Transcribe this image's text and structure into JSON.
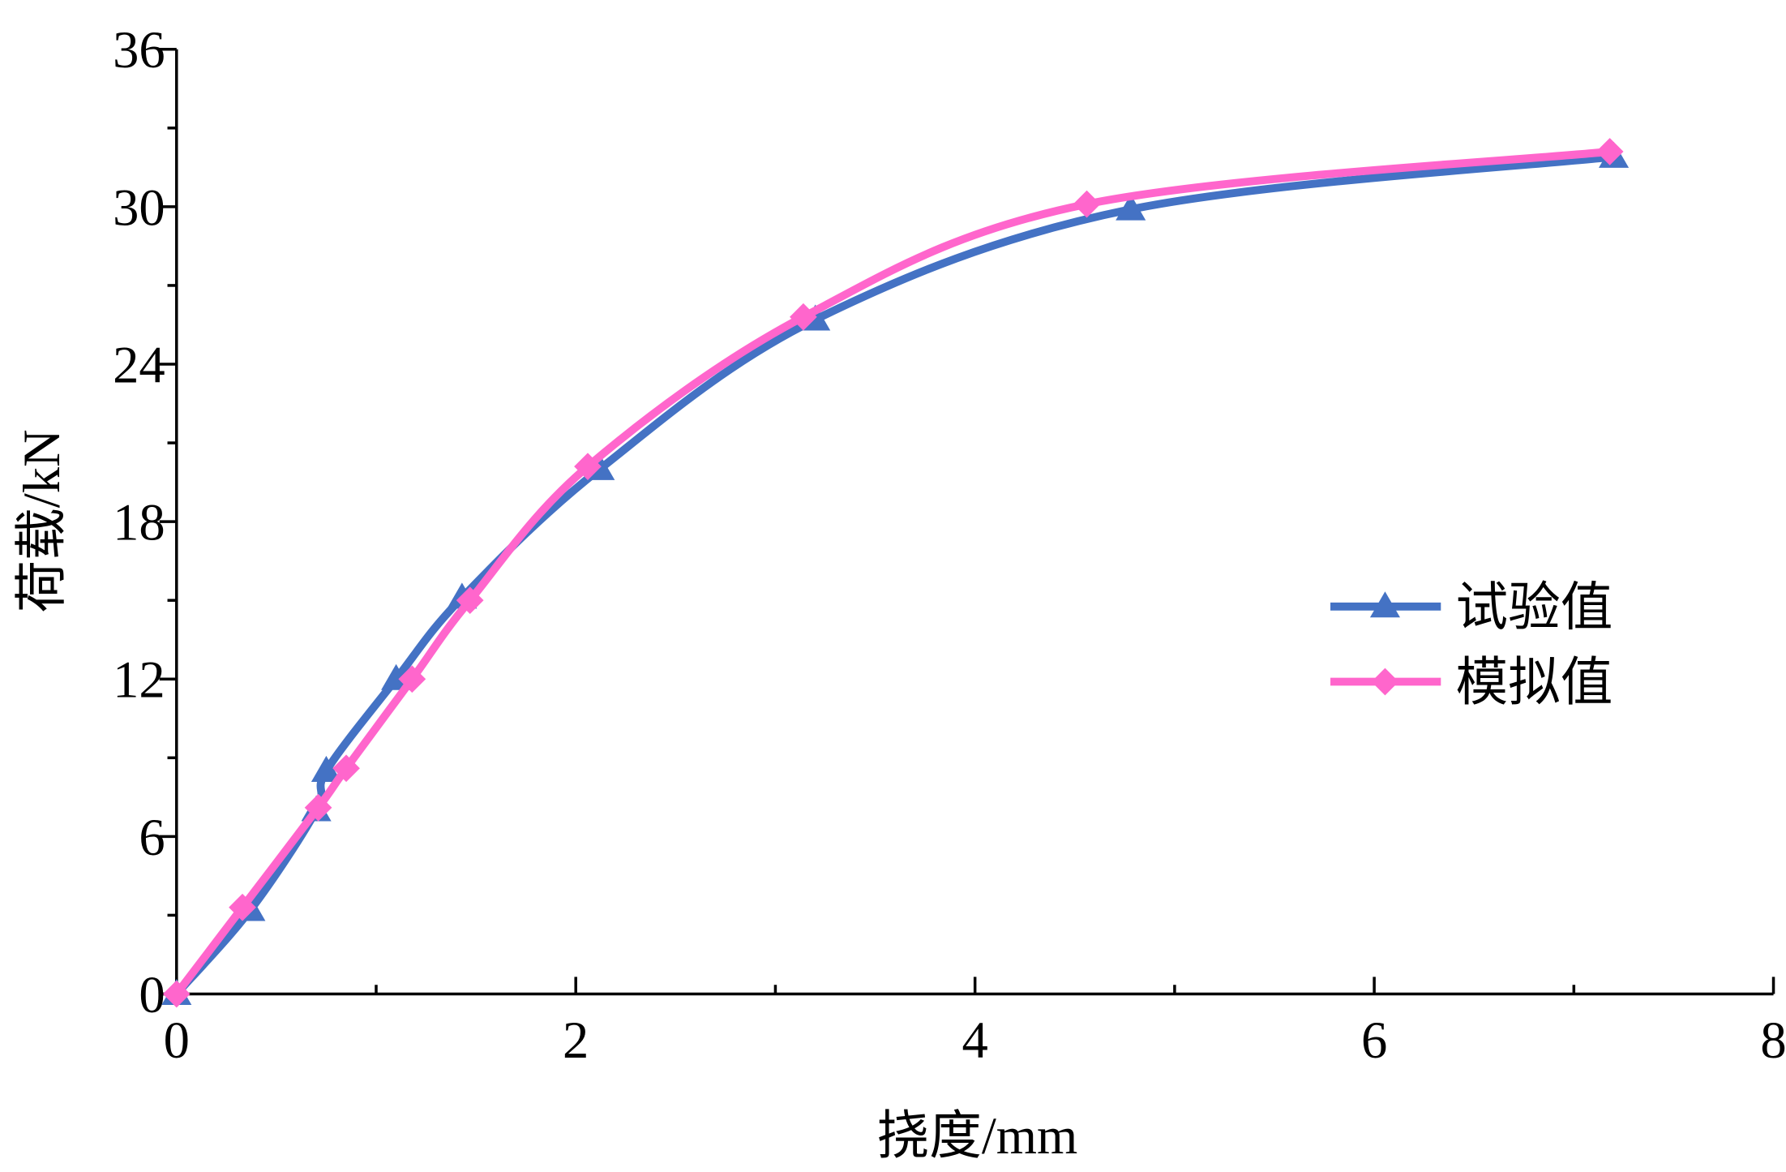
{
  "chart_data": {
    "type": "line",
    "x_label": "挠度/mm",
    "y_label": "荷载/kN",
    "xlim": [
      0,
      8
    ],
    "xticks": [
      0,
      2,
      4,
      6,
      8
    ],
    "ylim": [
      0,
      36
    ],
    "yticks": [
      0,
      6,
      12,
      18,
      24,
      30,
      36
    ],
    "legend": "center right",
    "series": [
      {
        "name": "试验值",
        "color": "#4472c4",
        "marker": "triangle",
        "x": [
          0,
          0.37,
          0.7,
          0.75,
          1.1,
          1.43,
          2.12,
          3.2,
          4.78,
          7.2
        ],
        "values": [
          0,
          3.2,
          7.0,
          8.5,
          12.0,
          15.1,
          20.0,
          25.7,
          29.9,
          31.9
        ]
      },
      {
        "name": "模拟值",
        "color": "#ff66cc",
        "marker": "diamond",
        "x": [
          0,
          0.33,
          0.71,
          0.85,
          1.18,
          1.47,
          2.06,
          3.14,
          4.56,
          7.18
        ],
        "values": [
          0,
          3.3,
          7.1,
          8.6,
          12.0,
          15.0,
          20.1,
          25.8,
          30.1,
          32.1
        ]
      }
    ]
  }
}
